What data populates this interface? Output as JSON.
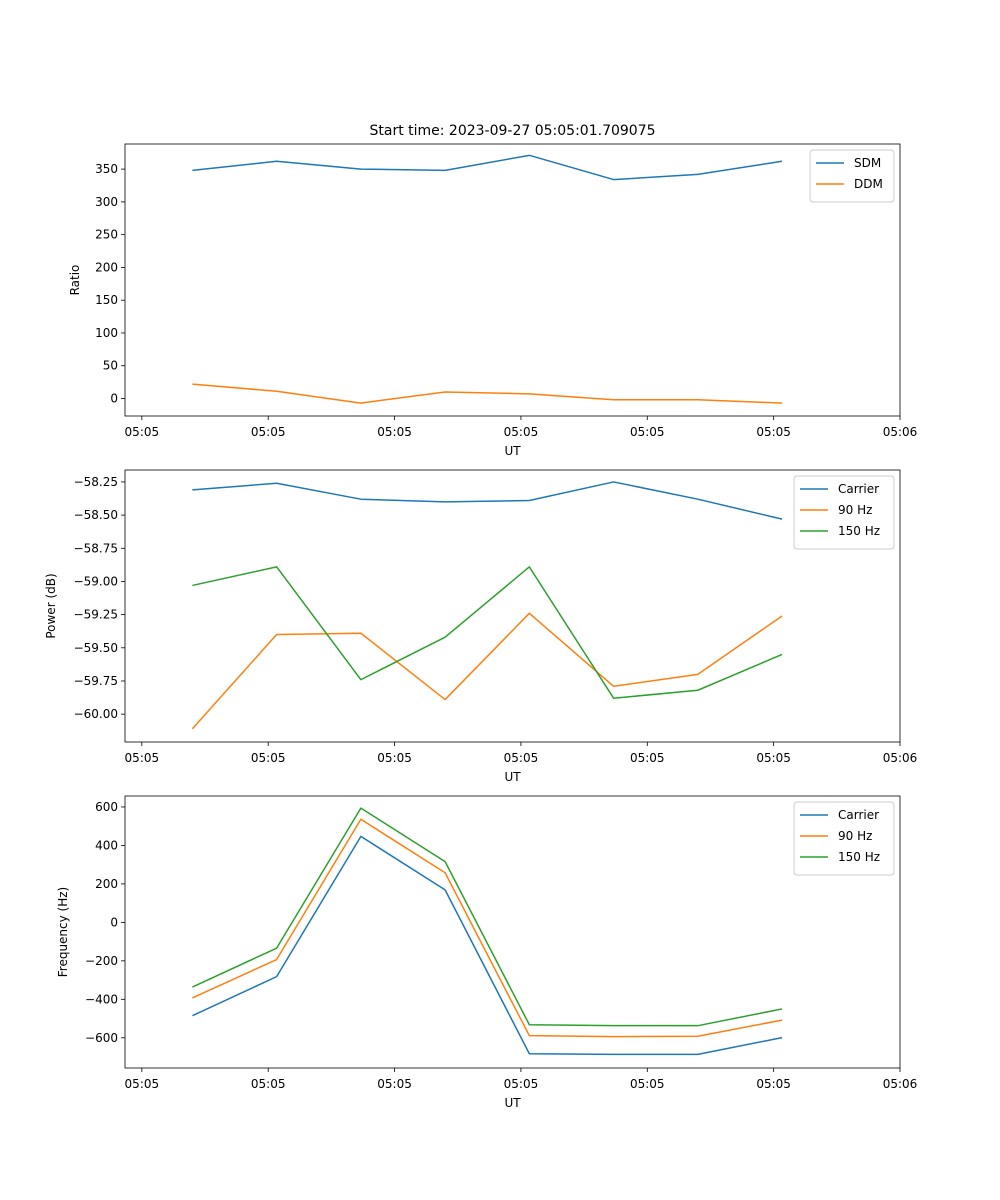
{
  "figure_title": "Start time: 2023-09-27 05:05:01.709075",
  "colors": {
    "blue": "#1f77b4",
    "orange": "#ff7f0e",
    "green": "#2ca02c"
  },
  "chart_data": [
    {
      "type": "line",
      "title": "Start time: 2023-09-27 05:05:01.709075",
      "xlabel": "UT",
      "ylabel": "Ratio",
      "x": [
        1,
        2,
        3,
        4,
        5,
        6,
        7,
        8
      ],
      "xlim": [
        0.2,
        9.4
      ],
      "xticks": [
        0.4,
        1.9,
        3.4,
        4.9,
        6.4,
        7.9,
        9.4
      ],
      "xticklabels": [
        "05:05",
        "05:05",
        "05:05",
        "05:05",
        "05:05",
        "05:05",
        "05:06"
      ],
      "ylim": [
        -26.7,
        388.3
      ],
      "yticks": [
        0,
        50,
        100,
        150,
        200,
        250,
        300,
        350
      ],
      "yticklabels": [
        "0",
        "50",
        "100",
        "150",
        "200",
        "250",
        "300",
        "350"
      ],
      "legend": "top-right",
      "series": [
        {
          "name": "SDM",
          "color": "#1f77b4",
          "values": [
            348,
            362,
            350,
            348,
            371,
            334,
            342,
            362
          ]
        },
        {
          "name": "DDM",
          "color": "#ff7f0e",
          "values": [
            22,
            11,
            -7,
            10,
            7,
            -2,
            -2,
            -7
          ]
        }
      ]
    },
    {
      "type": "line",
      "xlabel": "UT",
      "ylabel": "Power (dB)",
      "x": [
        1,
        2,
        3,
        4,
        5,
        6,
        7,
        8
      ],
      "xlim": [
        0.2,
        9.4
      ],
      "xticks": [
        0.4,
        1.9,
        3.4,
        4.9,
        6.4,
        7.9,
        9.4
      ],
      "xticklabels": [
        "05:05",
        "05:05",
        "05:05",
        "05:05",
        "05:05",
        "05:05",
        "05:06"
      ],
      "ylim": [
        -60.21,
        -58.16
      ],
      "yticks": [
        -58.25,
        -58.5,
        -58.75,
        -59.0,
        -59.25,
        -59.5,
        -59.75,
        -60.0
      ],
      "yticklabels": [
        "−58.25",
        "−58.50",
        "−58.75",
        "−59.00",
        "−59.25",
        "−59.50",
        "−59.75",
        "−60.00"
      ],
      "legend": "top-right",
      "series": [
        {
          "name": "Carrier",
          "color": "#1f77b4",
          "values": [
            -58.31,
            -58.26,
            -58.38,
            -58.4,
            -58.39,
            -58.25,
            -58.38,
            -58.53
          ]
        },
        {
          "name": "90 Hz",
          "color": "#ff7f0e",
          "values": [
            -60.11,
            -59.4,
            -59.39,
            -59.89,
            -59.24,
            -59.79,
            -59.7,
            -59.26
          ]
        },
        {
          "name": "150 Hz",
          "color": "#2ca02c",
          "values": [
            -59.03,
            -58.89,
            -59.74,
            -59.42,
            -58.89,
            -59.88,
            -59.82,
            -59.55
          ]
        }
      ]
    },
    {
      "type": "line",
      "xlabel": "UT",
      "ylabel": "Frequency (Hz)",
      "x": [
        1,
        2,
        3,
        4,
        5,
        6,
        7,
        8
      ],
      "xlim": [
        0.2,
        9.4
      ],
      "xticks": [
        0.4,
        1.9,
        3.4,
        4.9,
        6.4,
        7.9,
        9.4
      ],
      "xticklabels": [
        "05:05",
        "05:05",
        "05:05",
        "05:05",
        "05:05",
        "05:05",
        "05:06"
      ],
      "ylim": [
        -757,
        657
      ],
      "yticks": [
        600,
        400,
        200,
        0,
        -200,
        -400,
        -600
      ],
      "yticklabels": [
        "600",
        "400",
        "200",
        "0",
        "−200",
        "−400",
        "−600"
      ],
      "legend": "top-right",
      "series": [
        {
          "name": "Carrier",
          "color": "#1f77b4",
          "values": [
            -485,
            -282,
            447,
            169,
            -683,
            -686,
            -686,
            -599
          ]
        },
        {
          "name": "90 Hz",
          "color": "#ff7f0e",
          "values": [
            -393,
            -193,
            536,
            258,
            -589,
            -594,
            -592,
            -508
          ]
        },
        {
          "name": "150 Hz",
          "color": "#2ca02c",
          "values": [
            -336,
            -134,
            594,
            316,
            -532,
            -537,
            -537,
            -450
          ]
        }
      ]
    }
  ]
}
